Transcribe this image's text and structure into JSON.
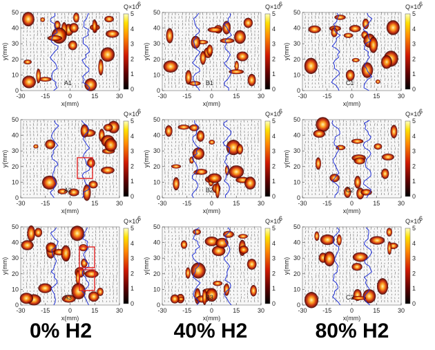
{
  "figure": {
    "x_axis_label": "x(mm)",
    "y_axis_label": "y(mm)",
    "x_ticks": [
      "-30",
      "-15",
      "0",
      "15",
      "30"
    ],
    "y_ticks": [
      "0",
      "10",
      "20",
      "30",
      "40",
      "50"
    ],
    "colorbar": {
      "label": "Q",
      "exponent": "×10",
      "exponent_power": "6",
      "ticks": [
        "0",
        "1",
        "2",
        "3",
        "4",
        "5"
      ]
    },
    "colors": {
      "contour_line": "#1f2fd6",
      "highlight_box": "#e02020",
      "vector_color": "#333333"
    }
  },
  "panels": [
    {
      "label": "A1",
      "column": "0% H2",
      "row": 1
    },
    {
      "label": "B1",
      "column": "40% H2",
      "row": 1
    },
    {
      "label": "C1",
      "column": "80% H2",
      "row": 1
    },
    {
      "label": "A2",
      "column": "0% H2",
      "row": 2
    },
    {
      "label": "B2",
      "column": "40% H2",
      "row": 2
    },
    {
      "label": "C2",
      "column": "80% H2",
      "row": 2
    },
    {
      "label": "A3",
      "column": "0% H2",
      "row": 3
    },
    {
      "label": "B3",
      "column": "40% H2",
      "row": 3
    },
    {
      "label": "C3",
      "column": "80% H2",
      "row": 3
    }
  ],
  "captions": [
    "0% H2",
    "40% H2",
    "80% H2"
  ]
}
